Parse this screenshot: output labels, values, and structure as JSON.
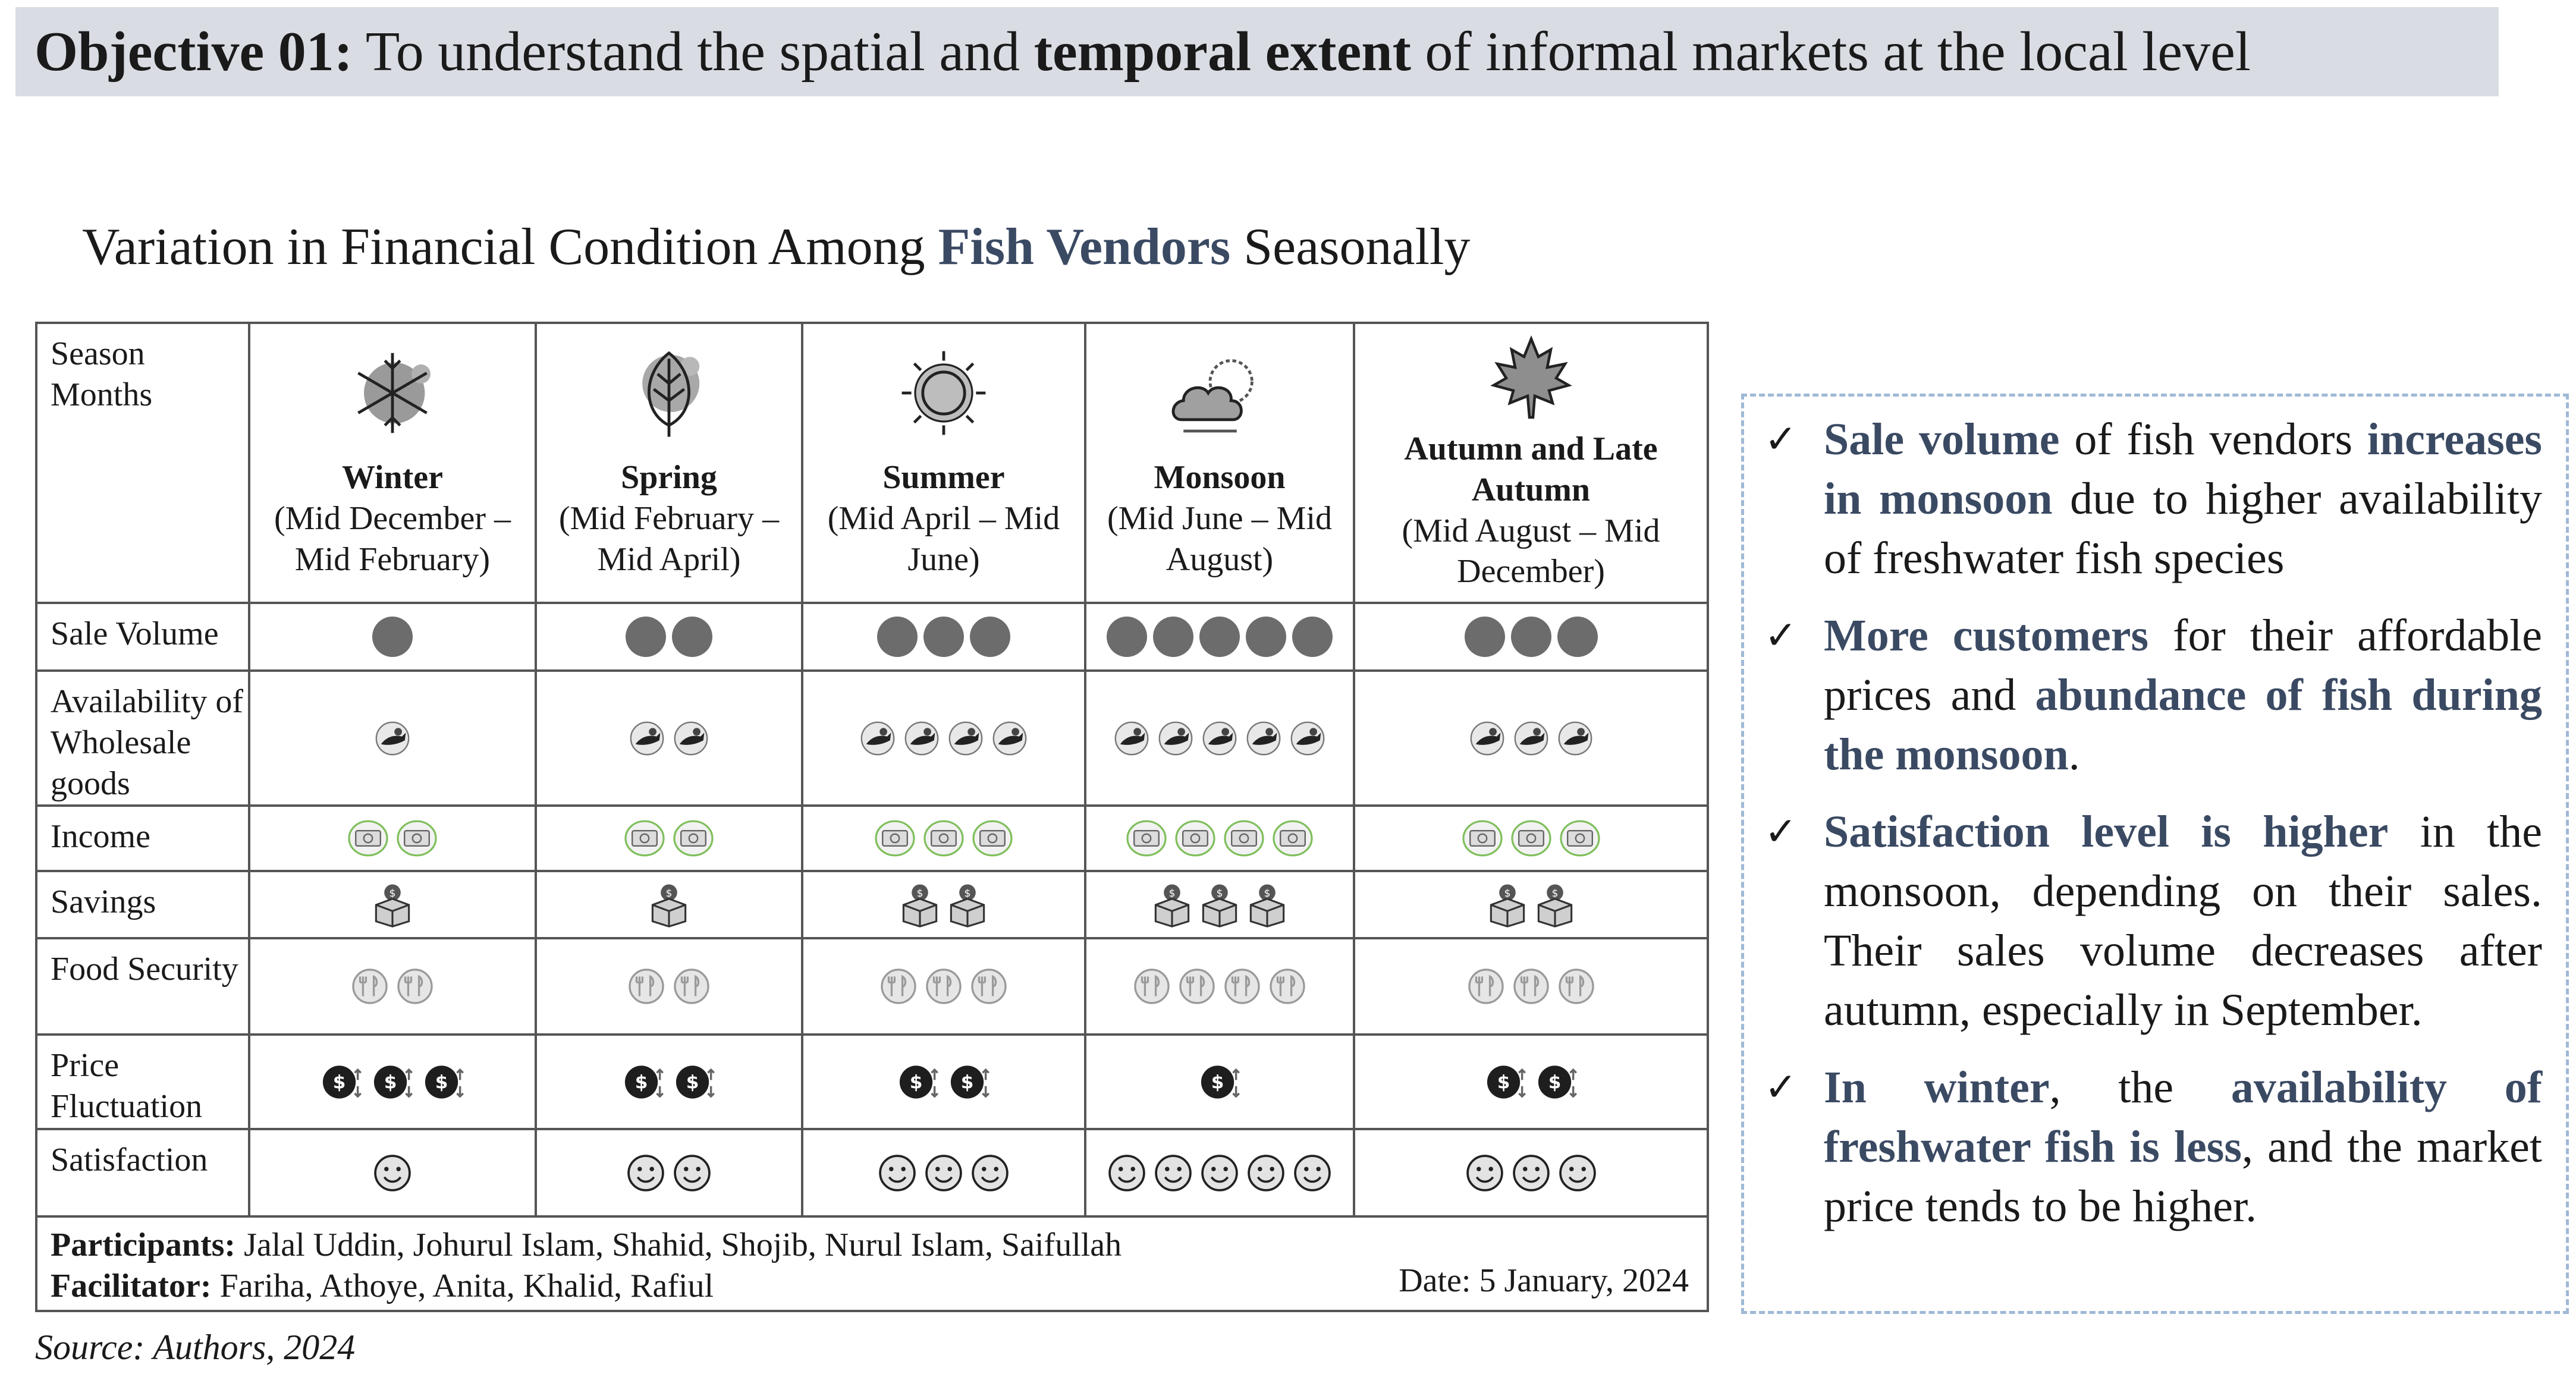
{
  "banner": {
    "prefix": "Objective 01:",
    "part1": " To understand the spatial and ",
    "bold": "temporal extent",
    "part2": " of informal markets at the local level"
  },
  "subtitle": {
    "before": "Variation in Financial Condition Among ",
    "highlight": "Fish Vendors",
    "after": " Seasonally"
  },
  "matrix": {
    "corner_label_1": "Season",
    "corner_label_2": "Months",
    "seasons": [
      {
        "name": "Winter",
        "months": "(Mid December – Mid February)",
        "icon": "snowflake-icon"
      },
      {
        "name": "Spring",
        "months": "(Mid February – Mid April)",
        "icon": "leaf-icon"
      },
      {
        "name": "Summer",
        "months": "(Mid April – Mid June)",
        "icon": "sun-icon"
      },
      {
        "name": "Monsoon",
        "months": "(Mid June – Mid August)",
        "icon": "cloud-sun-icon"
      },
      {
        "name": "Autumn and Late Autumn",
        "months": "(Mid August – Mid December)",
        "icon": "maple-leaf-icon"
      }
    ],
    "rows": [
      {
        "label": "Sale Volume",
        "icon": "circle-icon",
        "counts": [
          1,
          2,
          3,
          5,
          3
        ]
      },
      {
        "label": "Availability of Wholesale goods",
        "icon": "fish-goods-icon",
        "counts": [
          1,
          2,
          4,
          5,
          3
        ]
      },
      {
        "label": "Income",
        "icon": "money-icon",
        "counts": [
          2,
          2,
          3,
          4,
          3
        ]
      },
      {
        "label": "Savings",
        "icon": "savings-box-icon",
        "counts": [
          1,
          1,
          2,
          3,
          2
        ]
      },
      {
        "label": "Food Security",
        "icon": "food-security-icon",
        "counts": [
          2,
          2,
          3,
          4,
          3
        ]
      },
      {
        "label": "Price Fluctuation",
        "icon": "price-fluctuation-icon",
        "counts": [
          3,
          2,
          2,
          1,
          2
        ]
      },
      {
        "label": "Satisfaction",
        "icon": "smiley-icon",
        "counts": [
          1,
          2,
          3,
          5,
          3
        ]
      }
    ],
    "participants_label": "Participants:",
    "participants": "Jalal Uddin, Johurul Islam, Shahid, Shojib, Nurul Islam, Saifullah",
    "facilitator_label": "Facilitator:",
    "facilitators": "Fariha, Athoye, Anita, Khalid, Rafiul",
    "date": "Date: 5 January, 2024"
  },
  "source": "Source: Authors, 2024",
  "notes": [
    {
      "check": "✓",
      "parts": [
        {
          "t": "Sale volume",
          "b": true
        },
        {
          "t": " of fish vendors ",
          "b": false
        },
        {
          "t": "increases in monsoon",
          "b": true
        },
        {
          "t": " due to higher availability of freshwater fish species",
          "b": false
        }
      ]
    },
    {
      "check": "✓",
      "parts": [
        {
          "t": "More customers",
          "b": true
        },
        {
          "t": " for their affordable prices and ",
          "b": false
        },
        {
          "t": "abundance of fish during the monsoon",
          "b": true
        },
        {
          "t": ".",
          "b": false
        }
      ]
    },
    {
      "check": "✓",
      "parts": [
        {
          "t": "Satisfaction level is higher",
          "b": true
        },
        {
          "t": " in the monsoon, depending on their sales. Their sales volume decreases after autumn, especially in September.",
          "b": false
        }
      ]
    },
    {
      "check": "✓",
      "parts": [
        {
          "t": "In winter",
          "b": true
        },
        {
          "t": ", the ",
          "b": false
        },
        {
          "t": "availability of freshwater fish is less",
          "b": true
        },
        {
          "t": ", and the market price tends to be higher.",
          "b": false
        }
      ]
    }
  ],
  "colors": {
    "banner_bg": "#d9dce3",
    "accent": "#3b4a63",
    "note_border": "#9fb9d6",
    "income_ring": "#7fbf5c"
  }
}
